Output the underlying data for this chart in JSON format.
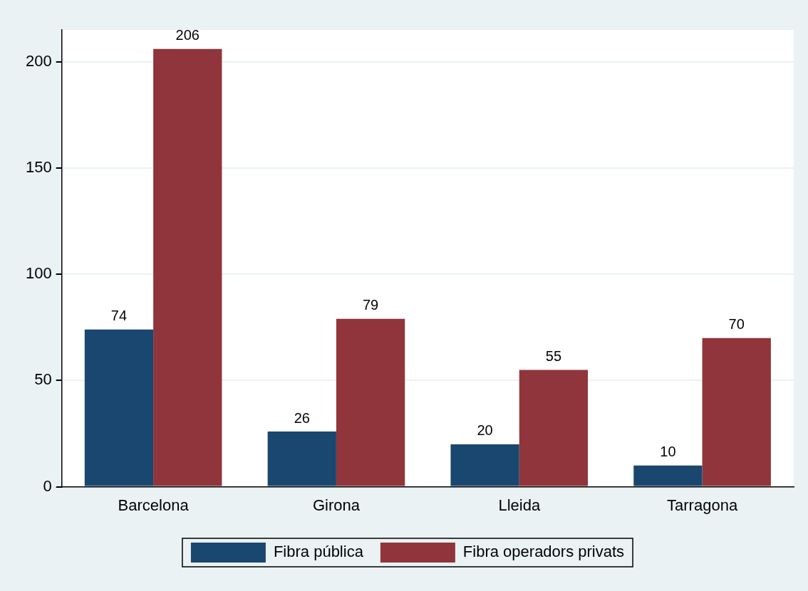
{
  "chart_data": {
    "type": "bar",
    "categories": [
      "Barcelona",
      "Girona",
      "Lleida",
      "Tarragona"
    ],
    "series": [
      {
        "name": "Fibra pública",
        "color": "#1a476f",
        "values": [
          74,
          26,
          20,
          10
        ]
      },
      {
        "name": "Fibra operadors privats",
        "color": "#90353b",
        "values": [
          206,
          79,
          55,
          70
        ]
      }
    ],
    "ylim": [
      0,
      215
    ],
    "yticks": [
      0,
      50,
      100,
      150,
      200
    ],
    "grid": "y",
    "legend": "bottom",
    "data_labels": true
  }
}
